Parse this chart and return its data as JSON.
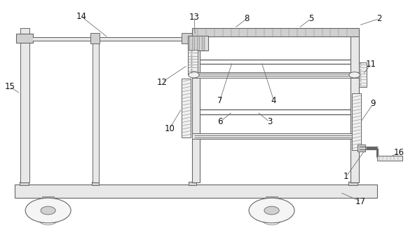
{
  "background_color": "#ffffff",
  "line_color": "#666666",
  "fill_light": "#e8e8e8",
  "fill_mid": "#d0d0d0",
  "fill_dark": "#b8b8b8",
  "label_color": "#111111",
  "label_fontsize": 8.5,
  "figure_width": 5.92,
  "figure_height": 3.25,
  "dpi": 100
}
